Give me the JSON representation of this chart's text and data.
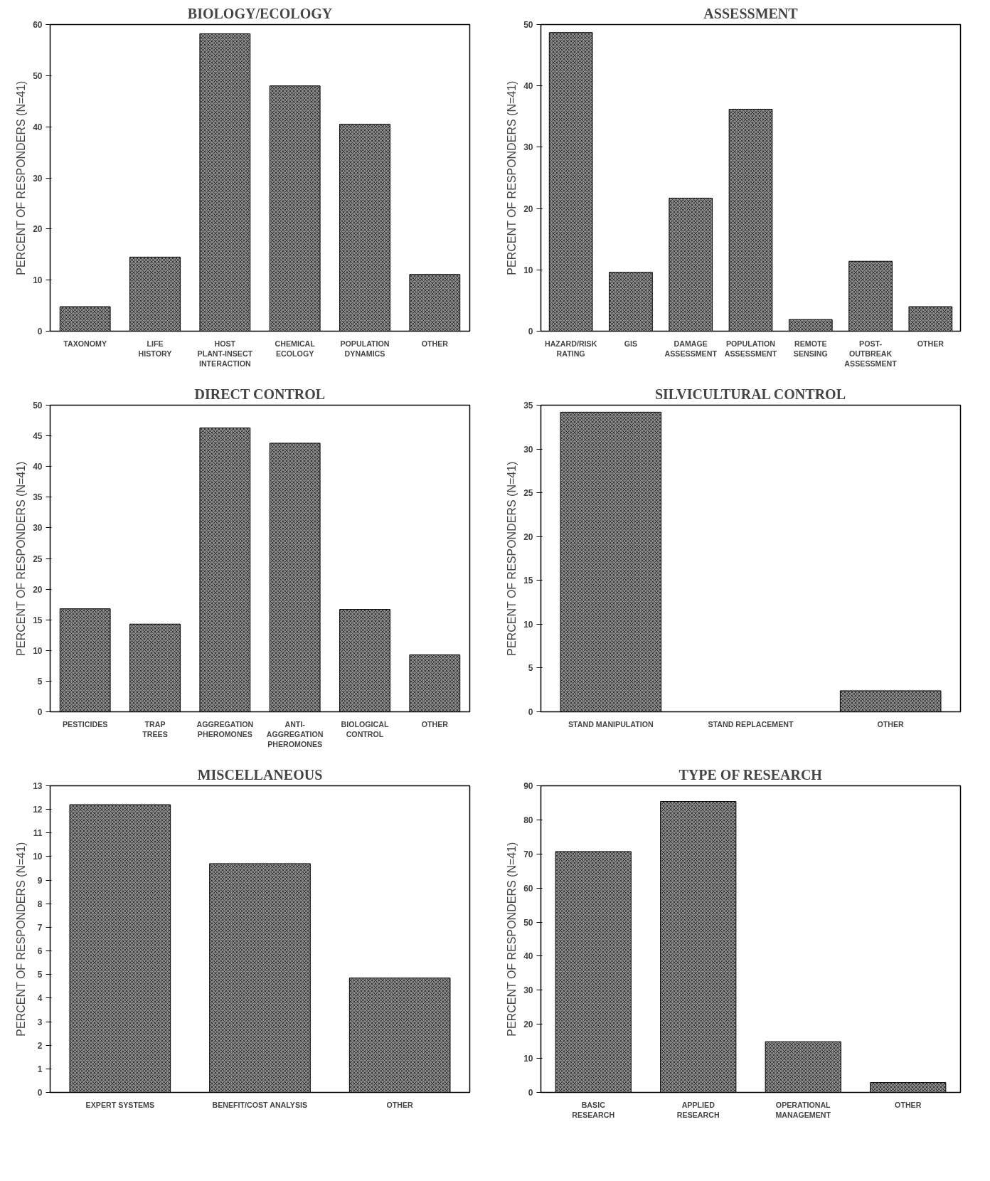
{
  "chart_data": [
    {
      "type": "bar",
      "title": "BIOLOGY/ECOLOGY",
      "ylabel": "PERCENT OF RESPONDERS (N=41)",
      "categories": [
        "TAXONOMY",
        "LIFE\nHISTORY",
        "HOST\nPLANT-INSECT\nINTERACTION",
        "CHEMICAL\nECOLOGY",
        "POPULATION\nDYNAMICS",
        "OTHER"
      ],
      "values": [
        4.8,
        14.5,
        58.2,
        48,
        40.5,
        11.1
      ],
      "color": "#8a8a8a",
      "ylim": [
        0,
        60
      ],
      "yticks": [
        0,
        10,
        20,
        30,
        40,
        50,
        60
      ],
      "grid": false
    },
    {
      "type": "bar",
      "title": "ASSESSMENT",
      "ylabel": "PERCENT OF RESPONDERS (N=41)",
      "categories": [
        "HAZARD/RISK\nRATING",
        "GIS",
        "DAMAGE\nASSESSMENT",
        "POPULATION\nASSESSMENT",
        "REMOTE\nSENSING",
        "POST-\nOUTBREAK\nASSESSMENT",
        "OTHER"
      ],
      "values": [
        48.7,
        9.6,
        21.7,
        36.2,
        1.9,
        11.4,
        4.0
      ],
      "color": "#8a8a8a",
      "ylim": [
        0,
        50
      ],
      "yticks": [
        0,
        10,
        20,
        30,
        40,
        50
      ],
      "grid": false
    },
    {
      "type": "bar",
      "title": "DIRECT CONTROL",
      "ylabel": "PERCENT OF RESPONDERS (N=41)",
      "categories": [
        "PESTICIDES",
        "TRAP\nTREES",
        "AGGREGATION\nPHEROMONES",
        "ANTI-\nAGGREGATION\nPHEROMONES",
        "BIOLOGICAL\nCONTROL",
        "OTHER"
      ],
      "values": [
        16.8,
        14.3,
        46.3,
        43.8,
        16.7,
        9.3
      ],
      "color": "#8a8a8a",
      "ylim": [
        0,
        50
      ],
      "yticks": [
        0,
        5,
        10,
        15,
        20,
        25,
        30,
        35,
        40,
        45,
        50
      ],
      "grid": false
    },
    {
      "type": "bar",
      "title": "SILVICULTURAL CONTROL",
      "ylabel": "PERCENT OF RESPONDERS (N=41)",
      "categories": [
        "STAND MANIPULATION",
        "STAND REPLACEMENT",
        "OTHER"
      ],
      "values": [
        34.2,
        null,
        2.4
      ],
      "color": "#8a8a8a",
      "ylim": [
        0,
        35
      ],
      "yticks": [
        0,
        5,
        10,
        15,
        20,
        25,
        30,
        35
      ],
      "grid": false
    },
    {
      "type": "bar",
      "title": "MISCELLANEOUS",
      "ylabel": "PERCENT OF RESPONDERS (N=41)",
      "categories": [
        "EXPERT SYSTEMS",
        "BENEFIT/COST ANALYSIS",
        "OTHER"
      ],
      "values": [
        12.2,
        9.7,
        4.85
      ],
      "color": "#8a8a8a",
      "ylim": [
        0,
        13
      ],
      "yticks": [
        0,
        1,
        2,
        3,
        4,
        5,
        6,
        7,
        8,
        9,
        10,
        11,
        12,
        13
      ],
      "grid": false
    },
    {
      "type": "bar",
      "title": "TYPE OF RESEARCH",
      "ylabel": "PERCENT OF RESPONDERS (N=41)",
      "categories": [
        "BASIC\nRESEARCH",
        "APPLIED\nRESEARCH",
        "OPERATIONAL\nMANAGEMENT",
        "OTHER"
      ],
      "values": [
        70.7,
        85.4,
        14.9,
        2.9
      ],
      "color": "#8a8a8a",
      "ylim": [
        0,
        90
      ],
      "yticks": [
        0,
        10,
        20,
        30,
        40,
        50,
        60,
        70,
        80,
        90
      ],
      "grid": false
    }
  ]
}
